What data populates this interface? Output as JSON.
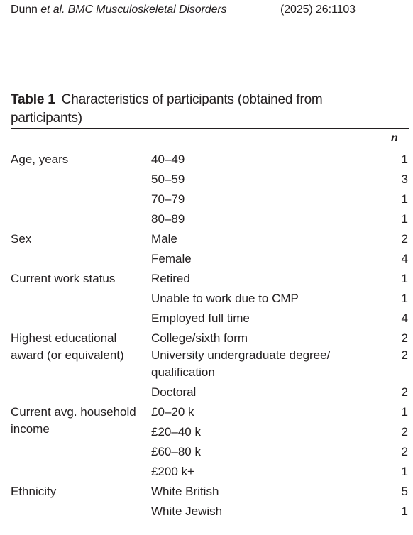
{
  "running_head": {
    "authors_main": "Dunn",
    "authors_etal": "et al.",
    "journal": "BMC Musculoskeletal Disorders",
    "citation": "(2025) 26:1103"
  },
  "table": {
    "label": "Table 1",
    "caption": "Characteristics of participants (obtained from participants)",
    "n_header": "n",
    "rows": [
      {
        "category": "Age, years",
        "subcategory": "40–49",
        "n": "1"
      },
      {
        "category": "",
        "subcategory": "50–59",
        "n": "3"
      },
      {
        "category": "",
        "subcategory": "70–79",
        "n": "1"
      },
      {
        "category": "",
        "subcategory": "80–89",
        "n": "1"
      },
      {
        "category": "Sex",
        "subcategory": "Male",
        "n": "2"
      },
      {
        "category": "",
        "subcategory": "Female",
        "n": "4"
      },
      {
        "category": "Current work status",
        "subcategory": "Retired",
        "n": "1"
      },
      {
        "category": "",
        "subcategory": "Unable to work due to CMP",
        "n": "1"
      },
      {
        "category": "",
        "subcategory": "Employed full time",
        "n": "4"
      },
      {
        "category": "Highest educational award (or equivalent)",
        "subcategory": "College/sixth form",
        "n": "2"
      },
      {
        "category": "",
        "subcategory": "University undergraduate degree/ qualification",
        "n": "2"
      },
      {
        "category": "",
        "subcategory": "Doctoral",
        "n": "2"
      },
      {
        "category": "Current avg. household income",
        "subcategory": "£0–20 k",
        "n": "1"
      },
      {
        "category": "",
        "subcategory": "£20–40 k",
        "n": "2"
      },
      {
        "category": "",
        "subcategory": "£60–80 k",
        "n": "2"
      },
      {
        "category": "",
        "subcategory": "£200 k+",
        "n": "1"
      },
      {
        "category": "Ethnicity",
        "subcategory": "White British",
        "n": "5"
      },
      {
        "category": "",
        "subcategory": "White Jewish",
        "n": "1"
      }
    ]
  }
}
